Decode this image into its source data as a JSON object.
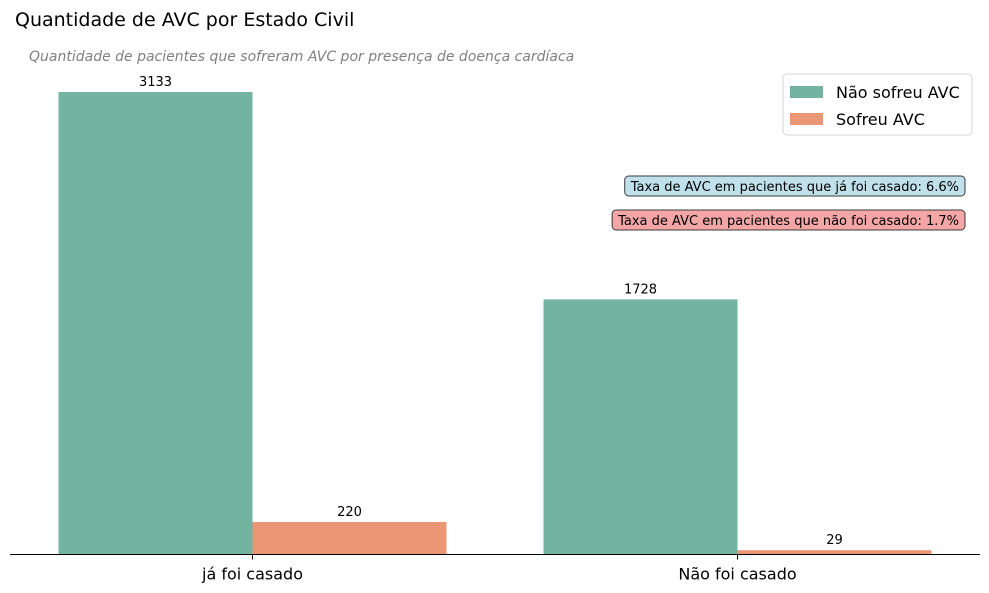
{
  "chart_data": {
    "type": "bar",
    "title": "Quantidade de AVC por Estado Civil",
    "subtitle": "Quantidade de pacientes que sofreram AVC por presença de doença cardíaca",
    "xlabel": "",
    "ylabel": "",
    "categories": [
      "já foi casado",
      "Não foi casado"
    ],
    "series": [
      {
        "name": "Não sofreu AVC",
        "values": [
          3133,
          1728
        ],
        "color": "#73b4a0"
      },
      {
        "name": "Sofreu AVC",
        "values": [
          220,
          29
        ],
        "color": "#eb9674"
      }
    ],
    "ylim": [
      0,
      3290
    ],
    "grid": false,
    "legend_position": "top-right",
    "annotations": [
      {
        "text": "Taxa de AVC em pacientes que já foi casado: 6.6%",
        "background": "#c0e1ec"
      },
      {
        "text": "Taxa de AVC em pacientes que não foi casado: 1.7%",
        "background": "#f4a6a6"
      }
    ]
  }
}
